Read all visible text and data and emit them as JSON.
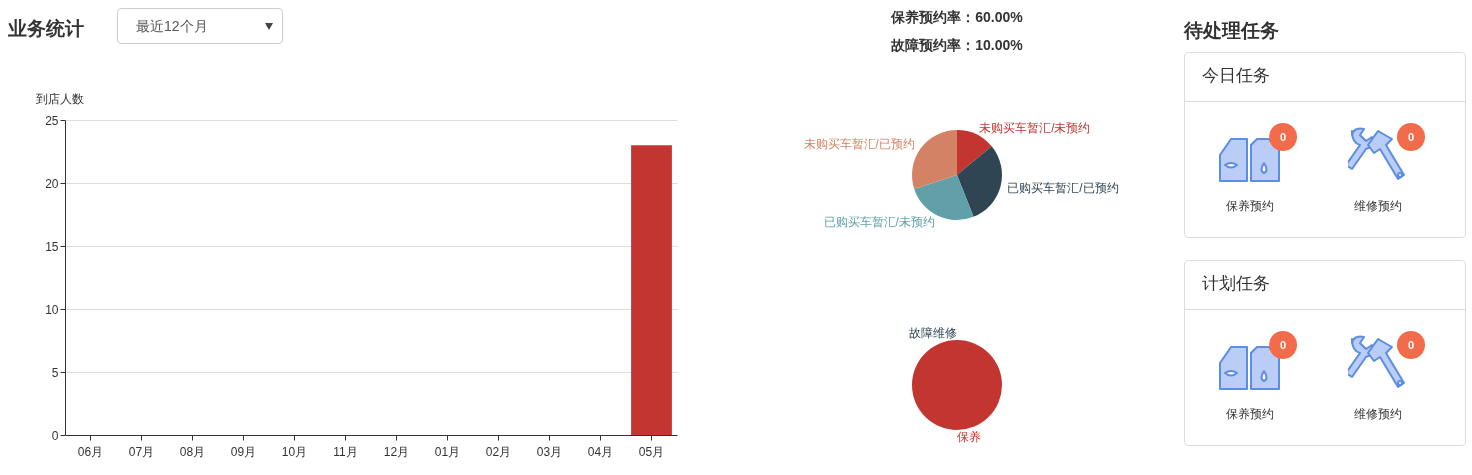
{
  "chart_data": [
    {
      "type": "bar",
      "title": "业务统计",
      "annotations": [
        "最近12个月"
      ],
      "ylabel": "到店人数",
      "categories": [
        "06月",
        "07月",
        "08月",
        "09月",
        "10月",
        "11月",
        "12月",
        "01月",
        "02月",
        "03月",
        "04月",
        "05月"
      ],
      "values": [
        0,
        0,
        0,
        0,
        0,
        0,
        0,
        0,
        0,
        0,
        0,
        23
      ],
      "color": "#c23531",
      "ylim": [
        0,
        25
      ],
      "yticks": [
        0,
        5,
        10,
        15,
        20,
        25
      ],
      "grid": "y"
    },
    {
      "type": "pie",
      "annotations": [
        "保养预约率：60.00%",
        "故障预约率：10.00%"
      ],
      "categories": [
        "未购买车暂汇/未预约",
        "已购买车暂汇/已预约",
        "已购买车暂汇/未预约",
        "未购买车暂汇/已预约"
      ],
      "values": [
        14,
        30,
        26,
        30
      ],
      "colors": [
        "#c23531",
        "#2f4554",
        "#61a0a8",
        "#d48265"
      ]
    },
    {
      "type": "pie",
      "categories": [
        "保养",
        "故障维修"
      ],
      "values": [
        100,
        0
      ],
      "colors": [
        "#c23531",
        "#2f4554"
      ]
    },
    {
      "type": "other",
      "title": "待处理任务",
      "annotations": [
        "今日任务",
        "保养预约",
        "0",
        "维修预约",
        "0",
        "计划任务",
        "保养预约",
        "0",
        "维修预约",
        "0"
      ]
    }
  ]
}
